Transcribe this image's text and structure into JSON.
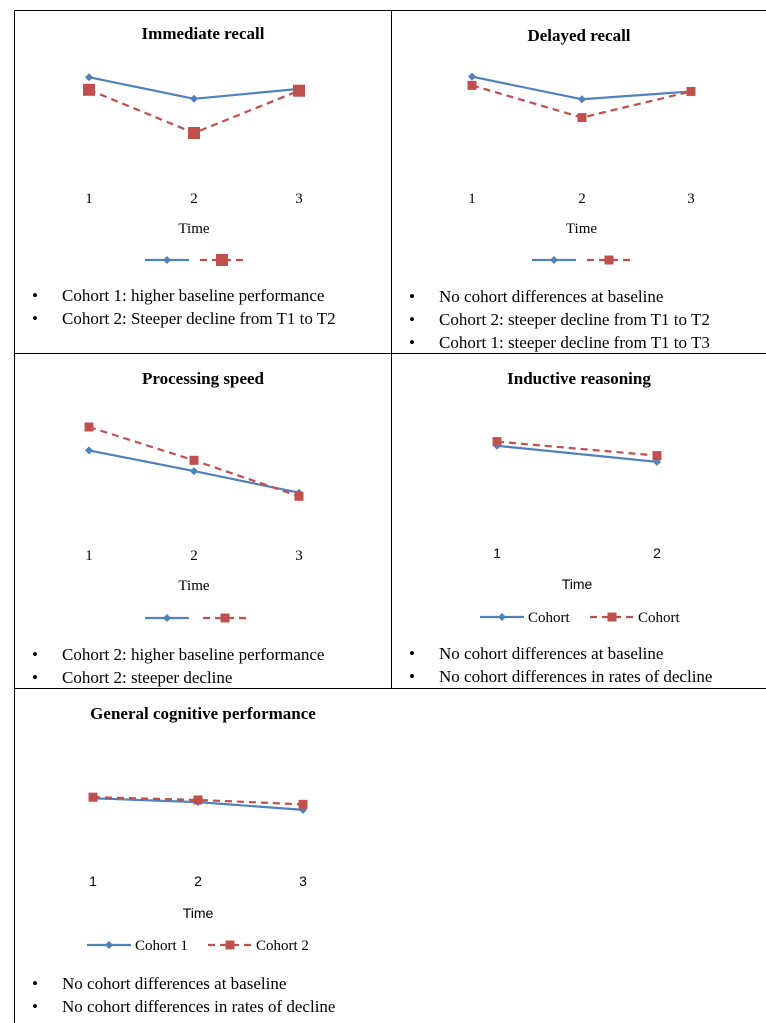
{
  "colors": {
    "cohort1": "#4F81BD",
    "cohort2": "#C0504D",
    "border": "#000000"
  },
  "panels": [
    {
      "id": "immediate-recall",
      "title": "Immediate recall",
      "notes": [
        "Cohort 1: higher baseline performance",
        "Cohort 2: Steeper decline from T1 to T2"
      ],
      "chart_data": {
        "type": "line",
        "title": "Immediate recall",
        "xlabel": "Time",
        "ylabel": "",
        "categories": [
          "1",
          "2",
          "3"
        ],
        "ylim": [
          0,
          1
        ],
        "grid": false,
        "legend": "bottom",
        "series": [
          {
            "name": "",
            "values": [
              0.82,
              0.58,
              0.69
            ]
          },
          {
            "name": "",
            "values": [
              0.68,
              0.2,
              0.67
            ]
          }
        ]
      }
    },
    {
      "id": "delayed-recall",
      "title": "Delayed recall",
      "notes": [
        "No cohort differences at baseline",
        "Cohort 2: steeper decline from T1 to T2",
        "Cohort 1: steeper decline from T1 to T3"
      ],
      "chart_data": {
        "type": "line",
        "title": "Delayed recall",
        "xlabel": "Time",
        "ylabel": "",
        "categories": [
          "1",
          "2",
          "3"
        ],
        "ylim": [
          0,
          1
        ],
        "grid": false,
        "legend": "bottom",
        "series": [
          {
            "name": "",
            "values": [
              0.82,
              0.56,
              0.65
            ]
          },
          {
            "name": "",
            "values": [
              0.72,
              0.35,
              0.65
            ]
          }
        ]
      }
    },
    {
      "id": "processing-speed",
      "title": "Processing speed",
      "notes": [
        "Cohort 2: higher baseline performance",
        "Cohort 2: steeper decline"
      ],
      "chart_data": {
        "type": "line",
        "title": "Processing speed",
        "xlabel": "Time",
        "ylabel": "",
        "categories": [
          "1",
          "2",
          "3"
        ],
        "ylim": [
          0,
          1
        ],
        "grid": false,
        "legend": "bottom",
        "series": [
          {
            "name": "",
            "values": [
              0.74,
              0.51,
              0.27
            ]
          },
          {
            "name": "",
            "values": [
              1.0,
              0.63,
              0.23
            ]
          }
        ]
      }
    },
    {
      "id": "inductive-reasoning",
      "title": "Inductive reasoning",
      "notes": [
        "No cohort differences at baseline",
        "No cohort differences in rates of decline"
      ],
      "chart_data": {
        "type": "line",
        "title": "Inductive reasoning",
        "xlabel": "Time",
        "ylabel": "",
        "categories": [
          "1",
          "2"
        ],
        "ylim": [
          0,
          1
        ],
        "grid": false,
        "legend": "bottom",
        "series": [
          {
            "name": "Cohort",
            "values": [
              0.76,
              0.53
            ]
          },
          {
            "name": "Cohort",
            "values": [
              0.82,
              0.62
            ]
          }
        ]
      }
    },
    {
      "id": "general-cognitive-performance",
      "title": "General cognitive performance",
      "notes": [
        "No cohort differences at baseline",
        "No cohort differences in rates of decline"
      ],
      "chart_data": {
        "type": "line",
        "title": "General cognitive performance",
        "xlabel": "Time",
        "ylabel": "",
        "categories": [
          "1",
          "2",
          "3"
        ],
        "ylim": [
          0,
          1
        ],
        "grid": false,
        "legend": "bottom",
        "series": [
          {
            "name": "Cohort 1",
            "values": [
              0.74,
              0.67,
              0.53
            ]
          },
          {
            "name": "Cohort 2",
            "values": [
              0.76,
              0.71,
              0.63
            ]
          }
        ]
      }
    }
  ]
}
